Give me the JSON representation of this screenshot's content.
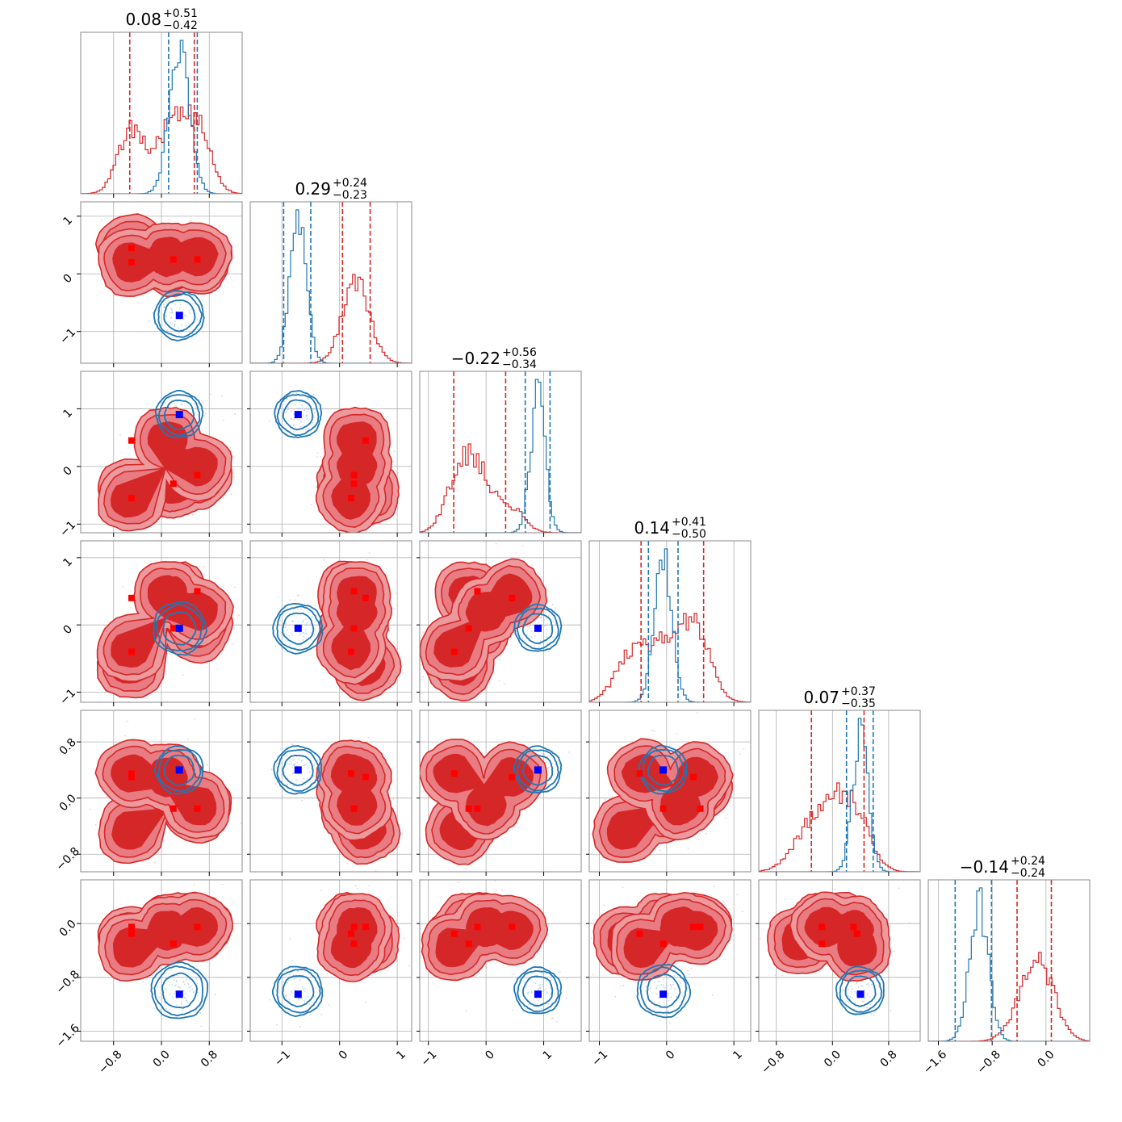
{
  "chart_data": {
    "type": "corner",
    "parameters": 6,
    "grid": true,
    "colors": {
      "series_a": "#d62728",
      "series_b": "#1f77b4",
      "truth_a": "#ff0000",
      "truth_b": "#0000ff"
    },
    "titles": [
      {
        "median": "0.08",
        "plus": "+0.51",
        "minus": "−0.42"
      },
      {
        "median": "0.29",
        "plus": "+0.24",
        "minus": "−0.23"
      },
      {
        "median": "−0.22",
        "plus": "+0.56",
        "minus": "−0.34"
      },
      {
        "median": "0.14",
        "plus": "+0.41",
        "minus": "−0.50"
      },
      {
        "median": "0.07",
        "plus": "+0.37",
        "minus": "−0.35"
      },
      {
        "median": "−0.14",
        "plus": "+0.24",
        "minus": "−0.24"
      }
    ],
    "axis_ranges": [
      [
        -1.35,
        1.35
      ],
      [
        -1.55,
        1.25
      ],
      [
        -1.15,
        1.65
      ],
      [
        -1.15,
        1.25
      ],
      [
        -1.05,
        1.25
      ],
      [
        -1.75,
        0.65
      ]
    ],
    "ticks": [
      {
        "values": [
          -0.8,
          0.0,
          0.8
        ],
        "labels": [
          "−0.8",
          "0.0",
          "0.8"
        ]
      },
      {
        "values": [
          -1,
          0,
          1
        ],
        "labels": [
          "−1",
          "0",
          "1"
        ]
      },
      {
        "values": [
          -1,
          0,
          1
        ],
        "labels": [
          "−1",
          "0",
          "1"
        ]
      },
      {
        "values": [
          -1,
          0,
          1
        ],
        "labels": [
          "−1",
          "0",
          "1"
        ]
      },
      {
        "values": [
          -0.8,
          0.0,
          0.8
        ],
        "labels": [
          "−0.8",
          "0.0",
          "0.8"
        ]
      },
      {
        "values": [
          -1.6,
          -0.8,
          0.0
        ],
        "labels": [
          "−1.6",
          "−0.8",
          "0.0"
        ]
      }
    ],
    "quantiles_red": [
      [
        -0.53,
        0.55
      ],
      [
        0.05,
        0.53
      ],
      [
        -0.56,
        0.34
      ],
      [
        -0.38,
        0.55
      ],
      [
        -0.3,
        0.45
      ],
      [
        -0.43,
        0.08
      ]
    ],
    "quantiles_blue": [
      [
        0.12,
        0.6
      ],
      [
        -0.97,
        -0.5
      ],
      [
        0.68,
        1.11
      ],
      [
        -0.27,
        0.17
      ],
      [
        0.2,
        0.58
      ],
      [
        -1.35,
        -0.81
      ]
    ],
    "series": [
      {
        "name": "",
        "color": "#d62728",
        "modes": [
          [
            [
              -0.5,
              0.45,
              -0.45,
              -0.6,
              -0.45,
              -0.25
            ],
            [
              0.2,
              0.2,
              -0.3,
              0.45,
              0.15,
              -0.05
            ],
            [
              0.6,
              0.25,
              -0.15,
              -0.05,
              -0.15,
              -0.05
            ]
          ],
          [
            [
              0.1,
              0.3,
              0.45,
              0.45,
              0.3,
              -0.1
            ],
            [
              0.6,
              0.3,
              0.0,
              0.2,
              -0.1,
              -0.05
            ],
            [
              -0.5,
              0.2,
              -0.55,
              -0.35,
              0.35,
              -0.35
            ]
          ]
        ]
      },
      {
        "name": "",
        "color": "#1f77b4",
        "center": [
          0.3,
          -0.72,
          0.9,
          -0.05,
          0.4,
          -1.0
        ],
        "spread": [
          0.17,
          0.14,
          0.13,
          0.13,
          0.11,
          0.14
        ]
      }
    ],
    "truth_red": [
      [
        -0.5,
        0.45,
        0.45,
        0.4,
        0.3,
        -0.05
      ],
      [
        -0.5,
        0.2,
        -0.55,
        -0.4,
        0.35,
        -0.15
      ],
      [
        0.2,
        0.25,
        -0.3,
        -0.05,
        -0.15,
        -0.3
      ],
      [
        0.6,
        0.25,
        -0.15,
        0.5,
        -0.15,
        -0.05
      ]
    ],
    "truth_blue": [
      0.3,
      -0.72,
      0.9,
      -0.05,
      0.4,
      -1.05
    ]
  }
}
